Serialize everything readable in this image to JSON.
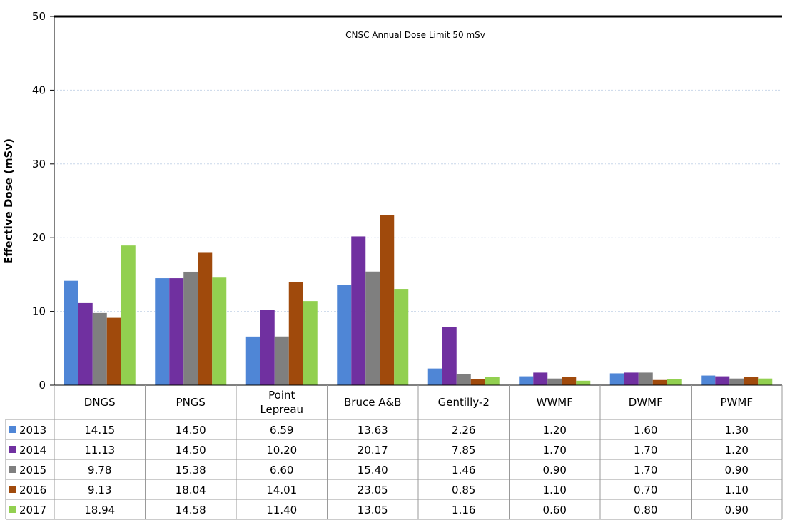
{
  "chart_data": {
    "type": "bar",
    "title": "",
    "ylabel": "Effective Dose (mSv)",
    "ylim": [
      0,
      50
    ],
    "yticks": [
      0,
      10,
      20,
      30,
      40,
      50
    ],
    "grid": true,
    "annotation": "CNSC Annual Dose Limit 50 mSv",
    "categories": [
      "DNGS",
      "PNGS",
      "Point Lepreau",
      "Bruce A&B",
      "Gentilly-2",
      "WWMF",
      "DWMF",
      "PWMF"
    ],
    "series": [
      {
        "name": "2013",
        "color": "#4f86d6",
        "values": [
          14.15,
          14.5,
          6.59,
          13.63,
          2.26,
          1.2,
          1.6,
          1.3
        ],
        "labels": [
          "14.15",
          "14.50",
          "6.59",
          "13.63",
          "2.26",
          "1.20",
          "1.60",
          "1.30"
        ]
      },
      {
        "name": "2014",
        "color": "#7030a0",
        "values": [
          11.13,
          14.5,
          10.2,
          20.17,
          7.85,
          1.7,
          1.7,
          1.2
        ],
        "labels": [
          "11.13",
          "14.50",
          "10.20",
          "20.17",
          "7.85",
          "1.70",
          "1.70",
          "1.20"
        ]
      },
      {
        "name": "2015",
        "color": "#7f7f7f",
        "values": [
          9.78,
          15.38,
          6.6,
          15.4,
          1.46,
          0.9,
          1.7,
          0.9
        ],
        "labels": [
          "9.78",
          "15.38",
          "6.60",
          "15.40",
          "1.46",
          "0.90",
          "1.70",
          "0.90"
        ]
      },
      {
        "name": "2016",
        "color": "#a04a0c",
        "values": [
          9.13,
          18.04,
          14.01,
          23.05,
          0.85,
          1.1,
          0.7,
          1.1
        ],
        "labels": [
          "9.13",
          "18.04",
          "14.01",
          "23.05",
          "0.85",
          "1.10",
          "0.70",
          "1.10"
        ]
      },
      {
        "name": "2017",
        "color": "#92d050",
        "values": [
          18.94,
          14.58,
          11.4,
          13.05,
          1.16,
          0.6,
          0.8,
          0.9
        ],
        "labels": [
          "18.94",
          "14.58",
          "11.40",
          "13.05",
          "1.16",
          "0.60",
          "0.80",
          "0.90"
        ]
      }
    ]
  }
}
